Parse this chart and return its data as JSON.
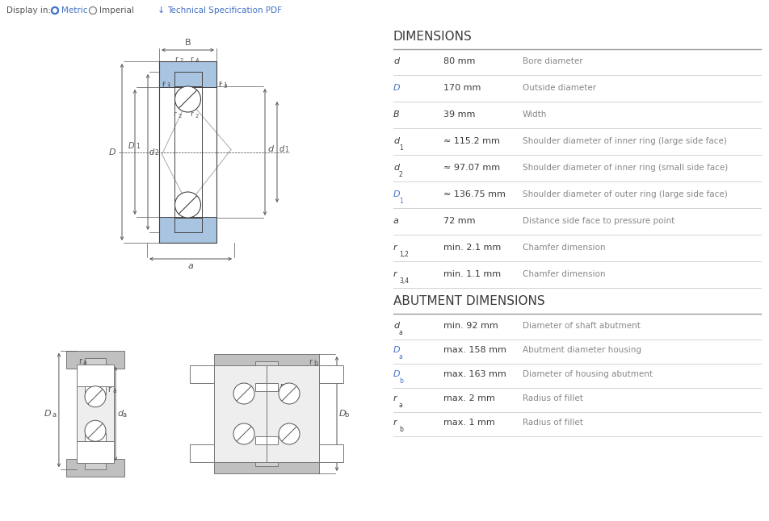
{
  "bg_color": "#ffffff",
  "blue_color": "#4472c4",
  "bearing_fill": "#a8c4e0",
  "gray_fill": "#c0c0c0",
  "gray_light": "#d8d8d8",
  "shaft_fill": "#e0e0e0",
  "line_color": "#555555",
  "dim_title": "DIMENSIONS",
  "abut_title": "ABUTMENT DIMENSIONS",
  "dim_rows": [
    {
      "sym": "d",
      "sub": "",
      "blue": false,
      "value": "80 mm",
      "desc": "Bore diameter"
    },
    {
      "sym": "D",
      "sub": "",
      "blue": true,
      "value": "170 mm",
      "desc": "Outside diameter"
    },
    {
      "sym": "B",
      "sub": "",
      "blue": false,
      "value": "39 mm",
      "desc": "Width"
    },
    {
      "sym": "d",
      "sub": "1",
      "blue": false,
      "value": "≈ 115.2 mm",
      "desc": "Shoulder diameter of inner ring (large side face)"
    },
    {
      "sym": "d",
      "sub": "2",
      "blue": false,
      "value": "≈ 97.07 mm",
      "desc": "Shoulder diameter of inner ring (small side face)"
    },
    {
      "sym": "D",
      "sub": "1",
      "blue": true,
      "value": "≈ 136.75 mm",
      "desc": "Shoulder diameter of outer ring (large side face)"
    },
    {
      "sym": "a",
      "sub": "",
      "blue": false,
      "value": "72 mm",
      "desc": "Distance side face to pressure point"
    },
    {
      "sym": "r",
      "sub": "1,2",
      "blue": false,
      "value": "min. 2.1 mm",
      "desc": "Chamfer dimension"
    },
    {
      "sym": "r",
      "sub": "3,4",
      "blue": false,
      "value": "min. 1.1 mm",
      "desc": "Chamfer dimension"
    }
  ],
  "abut_rows": [
    {
      "sym": "d",
      "sub": "a",
      "blue": false,
      "value": "min. 92 mm",
      "desc": "Diameter of shaft abutment"
    },
    {
      "sym": "D",
      "sub": "a",
      "blue": true,
      "value": "max. 158 mm",
      "desc": "Abutment diameter housing"
    },
    {
      "sym": "D",
      "sub": "b",
      "blue": true,
      "value": "max. 163 mm",
      "desc": "Diameter of housing abutment"
    },
    {
      "sym": "r",
      "sub": "a",
      "blue": false,
      "value": "max. 2 mm",
      "desc": "Radius of fillet"
    },
    {
      "sym": "r",
      "sub": "b",
      "blue": false,
      "value": "max. 1 mm",
      "desc": "Radius of fillet"
    }
  ]
}
